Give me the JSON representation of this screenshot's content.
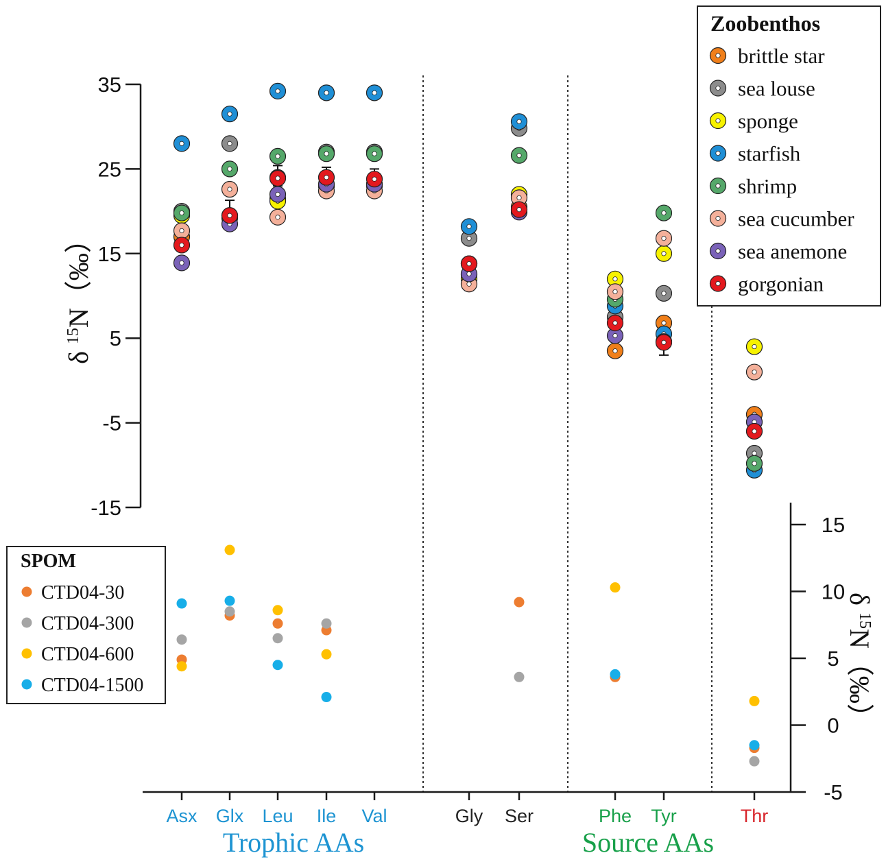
{
  "chart_data": [
    {
      "name": "zoobenthos",
      "type": "scatter",
      "ylabel_main": "δ",
      "ylabel_sup": "15",
      "ylabel_rest": "N（‰）",
      "ylim": [
        -15,
        35
      ],
      "yticks": [
        35,
        25,
        15,
        5,
        -5,
        -15
      ],
      "ytick_labels": [
        "35",
        "25",
        "15",
        "5",
        "-5",
        "-15"
      ],
      "categories": [
        "Asx",
        "Glx",
        "Leu",
        "Ile",
        "Val",
        "Gly",
        "Ser",
        "Phe",
        "Tyr",
        "Thr"
      ],
      "legend_title": "Zoobenthos",
      "legend_position": "top-right",
      "series": [
        {
          "name": "brittle star",
          "color": "#f07f1a",
          "values": [
            17.0,
            19.5,
            21.5,
            23.0,
            23.0,
            12.5,
            20.5,
            3.5,
            6.8,
            -4.0
          ]
        },
        {
          "name": "sea louse",
          "color": "#8c8c8c",
          "values": [
            20.0,
            28.0,
            24.0,
            27.0,
            27.0,
            16.8,
            29.8,
            7.5,
            10.3,
            -8.6
          ]
        },
        {
          "name": "sponge",
          "color": "#f7f200",
          "values": [
            19.5,
            19.2,
            21.2,
            23.0,
            23.2,
            12.0,
            22.0,
            12.0,
            15.0,
            4.0
          ]
        },
        {
          "name": "starfish",
          "color": "#1f8fd6",
          "values": [
            28.0,
            31.5,
            34.2,
            34.0,
            34.0,
            18.2,
            30.6,
            8.8,
            5.5,
            -10.6
          ]
        },
        {
          "name": "shrimp",
          "color": "#55a86a",
          "values": [
            19.8,
            25.0,
            26.5,
            26.8,
            26.8,
            13.8,
            26.6,
            9.6,
            19.8,
            -9.8
          ]
        },
        {
          "name": "sea cucumber",
          "color": "#f4b09a",
          "values": [
            17.7,
            22.6,
            19.3,
            22.4,
            22.4,
            11.4,
            21.6,
            10.5,
            16.8,
            1.0
          ]
        },
        {
          "name": "sea anemone",
          "color": "#7a62b8",
          "values": [
            13.9,
            18.5,
            22.0,
            23.2,
            23.2,
            12.6,
            19.9,
            5.3,
            4.6,
            -4.9
          ]
        },
        {
          "name": "gorgonian",
          "color": "#e3191e",
          "values": [
            16.0,
            19.5,
            23.9,
            24.0,
            23.8,
            13.8,
            20.2,
            6.8,
            4.5,
            -6.0
          ]
        }
      ],
      "error_bars": [
        {
          "series": "gorgonian",
          "category": "Glx",
          "low": 18.7,
          "high": 21.3
        },
        {
          "series": "gorgonian",
          "category": "Leu",
          "low": 23.0,
          "high": 25.4
        },
        {
          "series": "gorgonian",
          "category": "Ile",
          "low": 23.0,
          "high": 25.2
        },
        {
          "series": "gorgonian",
          "category": "Val",
          "low": 23.0,
          "high": 25.0
        },
        {
          "series": "gorgonian",
          "category": "Tyr",
          "low": 3.0,
          "high": 5.0
        }
      ]
    },
    {
      "name": "spom",
      "type": "scatter",
      "ylabel_main": "δ",
      "ylabel_sup": "15",
      "ylabel_rest": "N（‰）",
      "ylim": [
        -5,
        16.5
      ],
      "yticks": [
        15,
        10,
        5,
        0,
        -5
      ],
      "ytick_labels": [
        "15",
        "10",
        "5",
        "0",
        "-5"
      ],
      "categories": [
        "Asx",
        "Glx",
        "Leu",
        "Ile",
        "Val",
        "Gly",
        "Ser",
        "Phe",
        "Tyr",
        "Thr"
      ],
      "legend_title": "SPOM",
      "legend_position": "bottom-left",
      "series": [
        {
          "name": "CTD04-30",
          "color": "#ed7d31",
          "values": [
            4.9,
            8.2,
            7.6,
            7.1,
            null,
            null,
            9.2,
            3.6,
            null,
            -1.7
          ]
        },
        {
          "name": "CTD04-300",
          "color": "#a5a5a5",
          "values": [
            6.4,
            8.5,
            6.5,
            7.6,
            null,
            null,
            3.6,
            null,
            null,
            -2.7
          ]
        },
        {
          "name": "CTD04-600",
          "color": "#ffc000",
          "values": [
            4.4,
            13.1,
            8.6,
            5.3,
            null,
            null,
            null,
            10.3,
            null,
            1.8
          ]
        },
        {
          "name": "CTD04-1500",
          "color": "#17aee8",
          "values": [
            9.1,
            9.3,
            4.5,
            2.1,
            null,
            null,
            null,
            3.8,
            null,
            -1.5
          ]
        }
      ]
    }
  ],
  "x_axis": {
    "labels": [
      {
        "text": "Asx",
        "color": "#1e94d2"
      },
      {
        "text": "Glx",
        "color": "#1e94d2"
      },
      {
        "text": "Leu",
        "color": "#1e94d2"
      },
      {
        "text": "Ile",
        "color": "#1e94d2"
      },
      {
        "text": "Val",
        "color": "#1e94d2"
      },
      {
        "text": "Gly",
        "color": "#222222"
      },
      {
        "text": "Ser",
        "color": "#222222"
      },
      {
        "text": "Phe",
        "color": "#18a04a"
      },
      {
        "text": "Tyr",
        "color": "#18a04a"
      },
      {
        "text": "Thr",
        "color": "#d8262c"
      }
    ],
    "groups": [
      {
        "text": "Trophic AAs",
        "color": "#1e94d2"
      },
      {
        "text": "Source AAs",
        "color": "#18a04a"
      }
    ]
  },
  "colors": {
    "axis": "#1a1a1a",
    "divider": "#333333"
  }
}
